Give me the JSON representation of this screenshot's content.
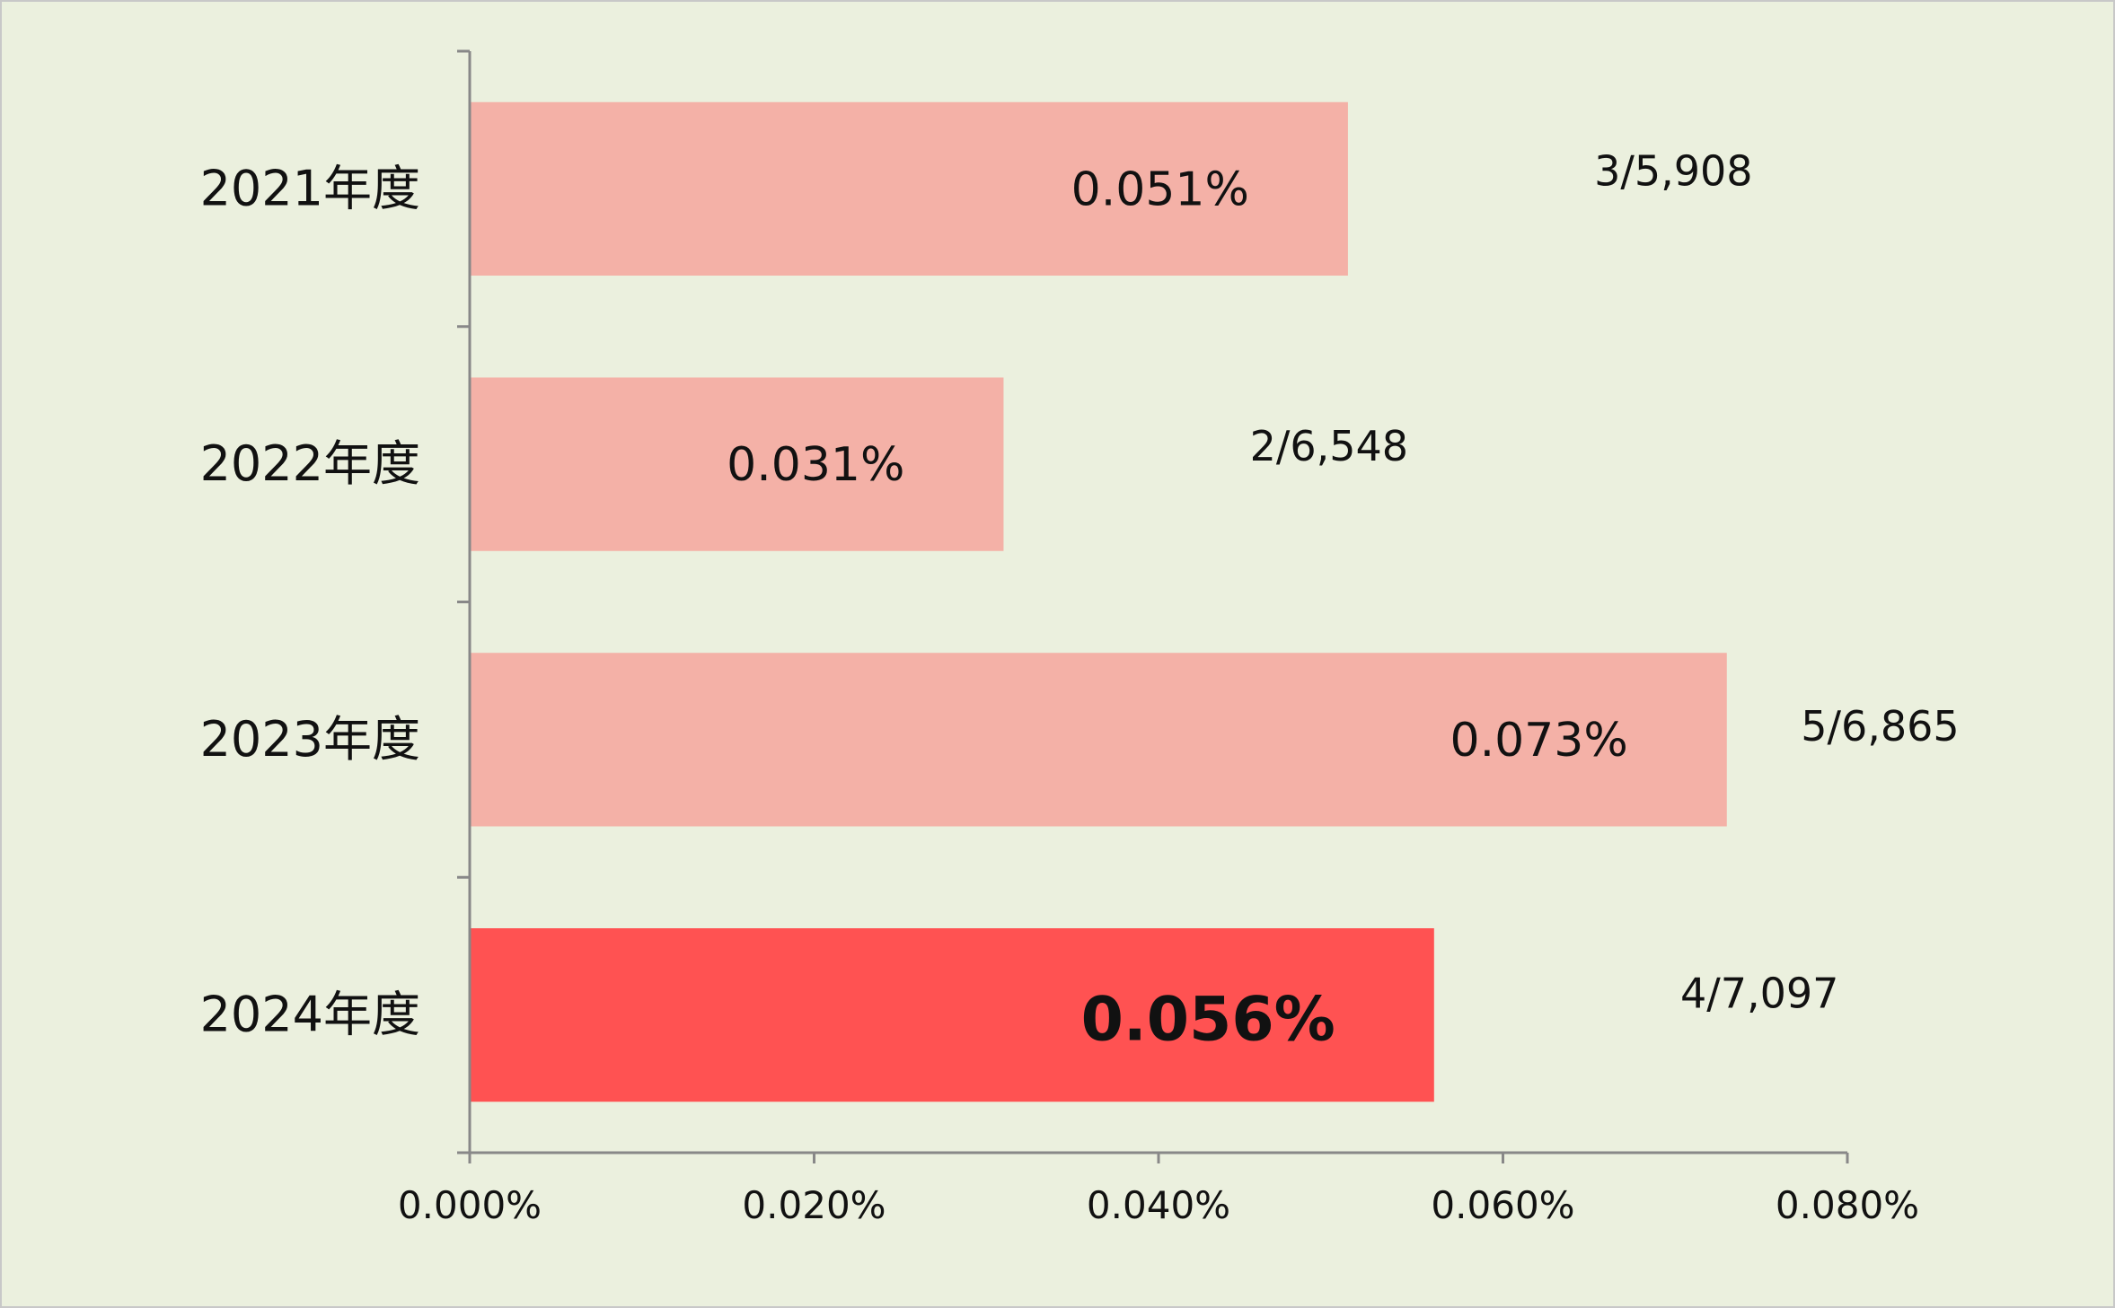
{
  "chart_data": {
    "type": "bar",
    "orientation": "horizontal",
    "title": "",
    "xlabel": "",
    "ylabel": "",
    "xlim": [
      0,
      0.08
    ],
    "x_ticks": [
      0,
      0.02,
      0.04,
      0.06,
      0.08
    ],
    "x_tick_labels": [
      "0.000%",
      "0.020%",
      "0.040%",
      "0.060%",
      "0.080%"
    ],
    "grid": false,
    "categories": [
      "2021年度",
      "2022年度",
      "2023年度",
      "2024年度"
    ],
    "values": [
      0.051,
      0.031,
      0.073,
      0.056
    ],
    "value_labels": [
      "0.051%",
      "0.031%",
      "0.073%",
      "0.056%"
    ],
    "ratio_labels": [
      "3/5,908",
      "2/6,548",
      "5/6,865",
      "4/7,097"
    ],
    "highlight_index": 3,
    "colors": {
      "background": "#ebf0de",
      "bar": "#f4b1a7",
      "bar_highlight": "#ff5252",
      "axis": "#888888",
      "border": "#c8c8c8"
    }
  }
}
